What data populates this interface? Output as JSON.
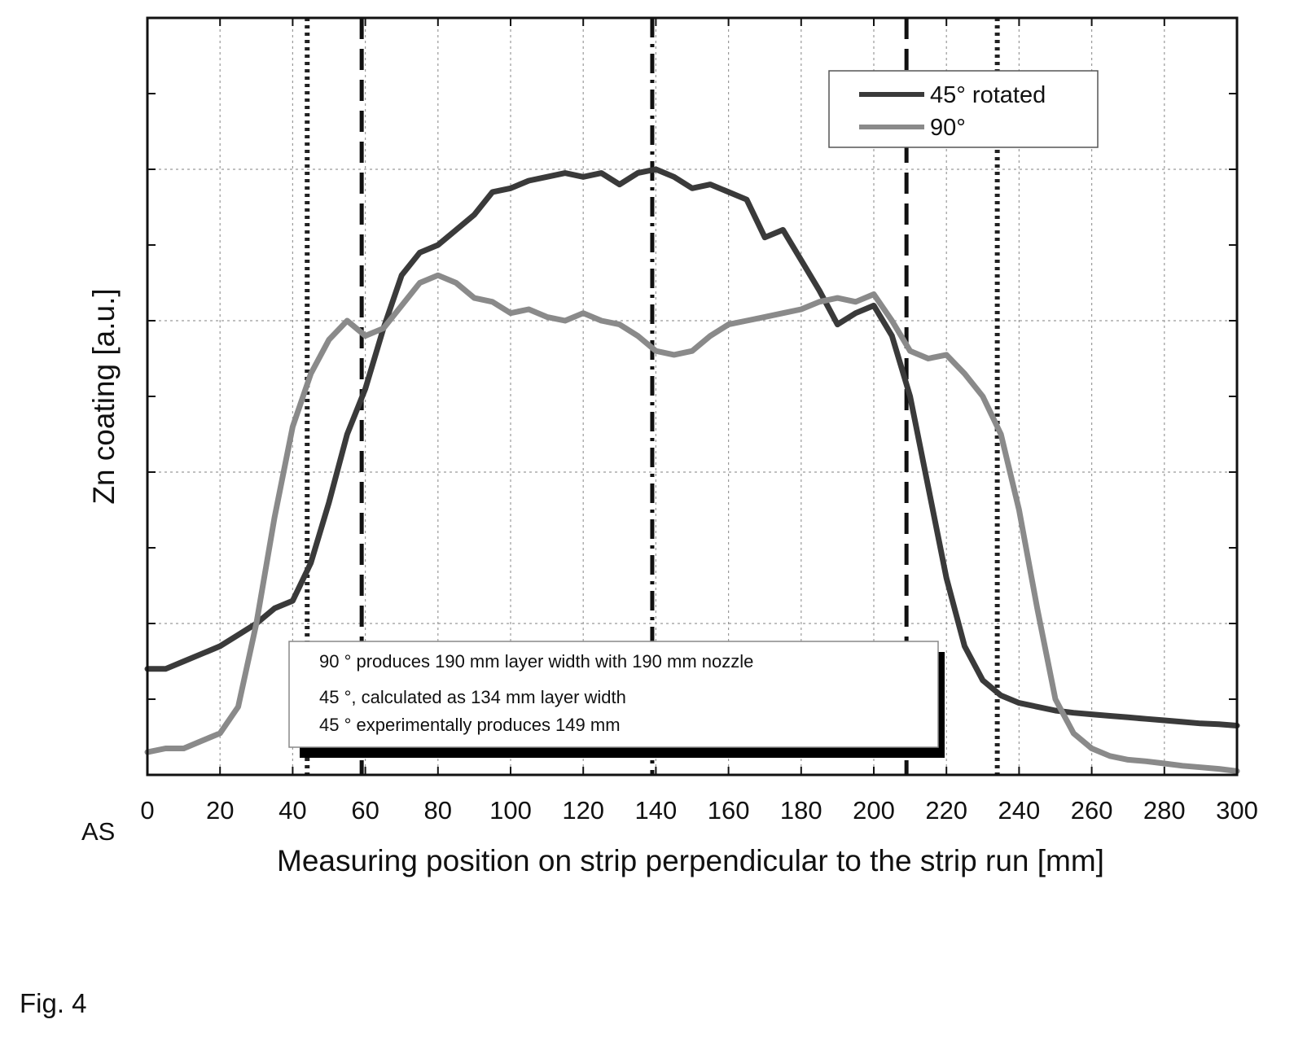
{
  "figure_label": "Fig. 4",
  "chart_data": {
    "type": "line",
    "title": "",
    "xlabel": "Measuring position on strip perpendicular to the strip run [mm]",
    "ylabel": "Zn coating [a.u.]",
    "x_origin_label": "AS",
    "xlim": [
      0,
      300
    ],
    "ylim": [
      0,
      10
    ],
    "xticks": [
      0,
      20,
      40,
      60,
      80,
      100,
      120,
      140,
      160,
      180,
      200,
      220,
      240,
      260,
      280,
      300
    ],
    "yticks": [
      0,
      1,
      2,
      3,
      4,
      5,
      6,
      7,
      8,
      9,
      10
    ],
    "grid": true,
    "legend_position": "top-right",
    "series": [
      {
        "name": "45° rotated",
        "color": "#3a3a3a",
        "x": [
          0,
          5,
          10,
          15,
          20,
          25,
          30,
          35,
          40,
          45,
          50,
          55,
          60,
          65,
          70,
          75,
          80,
          85,
          90,
          95,
          100,
          105,
          110,
          115,
          120,
          125,
          130,
          135,
          140,
          145,
          150,
          155,
          160,
          165,
          170,
          175,
          180,
          185,
          190,
          195,
          200,
          205,
          210,
          215,
          220,
          225,
          230,
          235,
          240,
          245,
          250,
          255,
          260,
          265,
          270,
          275,
          280,
          285,
          290,
          295,
          300
        ],
        "y": [
          1.4,
          1.4,
          1.5,
          1.6,
          1.7,
          1.85,
          2.0,
          2.2,
          2.3,
          2.8,
          3.6,
          4.5,
          5.1,
          5.9,
          6.6,
          6.9,
          7.0,
          7.2,
          7.4,
          7.7,
          7.75,
          7.85,
          7.9,
          7.95,
          7.9,
          7.95,
          7.8,
          7.95,
          8.0,
          7.9,
          7.75,
          7.8,
          7.7,
          7.6,
          7.1,
          7.2,
          6.8,
          6.4,
          5.95,
          6.1,
          6.2,
          5.8,
          5.0,
          3.8,
          2.6,
          1.7,
          1.25,
          1.05,
          0.95,
          0.9,
          0.85,
          0.82,
          0.8,
          0.78,
          0.76,
          0.74,
          0.72,
          0.7,
          0.68,
          0.67,
          0.65
        ]
      },
      {
        "name": "90°",
        "color": "#8a8a8a",
        "x": [
          0,
          5,
          10,
          15,
          20,
          25,
          30,
          35,
          40,
          45,
          50,
          55,
          60,
          65,
          70,
          75,
          80,
          85,
          90,
          95,
          100,
          105,
          110,
          115,
          120,
          125,
          130,
          135,
          140,
          145,
          150,
          155,
          160,
          165,
          170,
          175,
          180,
          185,
          190,
          195,
          200,
          205,
          210,
          215,
          220,
          225,
          230,
          235,
          240,
          245,
          250,
          255,
          260,
          265,
          270,
          275,
          280,
          285,
          290,
          295,
          300
        ],
        "y": [
          0.3,
          0.35,
          0.35,
          0.45,
          0.55,
          0.9,
          2.0,
          3.4,
          4.6,
          5.3,
          5.75,
          6.0,
          5.8,
          5.9,
          6.2,
          6.5,
          6.6,
          6.5,
          6.3,
          6.25,
          6.1,
          6.15,
          6.05,
          6.0,
          6.1,
          6.0,
          5.95,
          5.8,
          5.6,
          5.55,
          5.6,
          5.8,
          5.95,
          6.0,
          6.05,
          6.1,
          6.15,
          6.25,
          6.3,
          6.25,
          6.35,
          6.0,
          5.6,
          5.5,
          5.55,
          5.3,
          5.0,
          4.5,
          3.5,
          2.2,
          1.0,
          0.55,
          0.35,
          0.25,
          0.2,
          0.18,
          0.15,
          0.12,
          0.1,
          0.08,
          0.05
        ]
      }
    ],
    "vertical_lines": [
      {
        "x": 44,
        "style": "dotted",
        "color": "#222"
      },
      {
        "x": 59,
        "style": "dashed",
        "color": "#111"
      },
      {
        "x": 139,
        "style": "dashdot",
        "color": "#111"
      },
      {
        "x": 209,
        "style": "dashed",
        "color": "#111"
      },
      {
        "x": 234,
        "style": "dotted",
        "color": "#222"
      }
    ],
    "annotation_lines": [
      "90 ° produces 190 mm layer width with 190 mm nozzle",
      "45 °, calculated as 134 mm layer width",
      "45 ° experimentally produces 149 mm"
    ]
  }
}
